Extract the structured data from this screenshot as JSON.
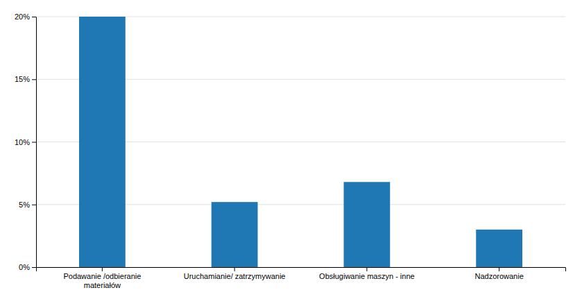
{
  "chart_data": {
    "type": "bar",
    "categories": [
      "Podawanie /odbieranie\nmateriałów",
      "Uruchamianie/ zatrzymywanie",
      "Obsługiwanie maszyn - inne",
      "Nadzorowanie"
    ],
    "values": [
      20.0,
      5.2,
      6.8,
      3.0
    ],
    "ylim": [
      0,
      20
    ],
    "yticks": [
      {
        "value": 0,
        "label": "0%"
      },
      {
        "value": 5,
        "label": "5%"
      },
      {
        "value": 10,
        "label": "10%"
      },
      {
        "value": 15,
        "label": "15%"
      },
      {
        "value": 20,
        "label": "20%"
      }
    ],
    "grid": true
  }
}
